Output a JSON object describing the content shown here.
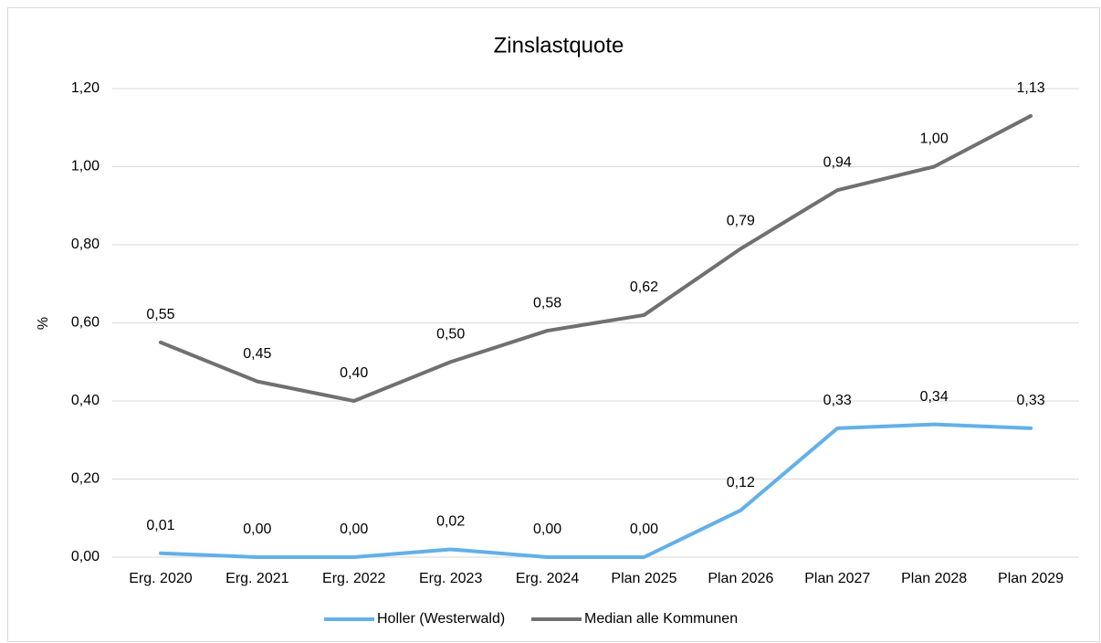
{
  "chart_data": {
    "type": "line",
    "title": "Zinslastquote",
    "y_label": "%",
    "categories": [
      "Erg. 2020",
      "Erg. 2021",
      "Erg. 2022",
      "Erg. 2023",
      "Erg. 2024",
      "Plan 2025",
      "Plan 2026",
      "Plan 2027",
      "Plan 2028",
      "Plan 2029"
    ],
    "series": [
      {
        "name": "Holler (Westerwald)",
        "color": "#63b0e8",
        "values": [
          0.01,
          0,
          0,
          0.02,
          0,
          0,
          0.12,
          0.33,
          0.34,
          0.33
        ],
        "value_labels": [
          "0,01",
          "0,00",
          "0,00",
          "0,02",
          "0,00",
          "0,00",
          "0,12",
          "0,33",
          "0,34",
          "0,33"
        ]
      },
      {
        "name": "Median alle Kommunen",
        "color": "#707070",
        "values": [
          0.55,
          0.45,
          0.4,
          0.5,
          0.58,
          0.62,
          0.79,
          0.94,
          1,
          1.13
        ],
        "value_labels": [
          "0,55",
          "0,45",
          "0,40",
          "0,50",
          "0,58",
          "0,62",
          "0,79",
          "0,94",
          "1,00",
          "1,13"
        ]
      }
    ],
    "ylim": [
      0,
      1.2
    ],
    "yticks": [
      {
        "value": 0,
        "label": "0,00"
      },
      {
        "value": 0.2,
        "label": "0,20"
      },
      {
        "value": 0.4,
        "label": "0,40"
      },
      {
        "value": 0.6,
        "label": "0,60"
      },
      {
        "value": 0.8,
        "label": "0,80"
      },
      {
        "value": 1,
        "label": "1,00"
      },
      {
        "value": 1.2,
        "label": "1,20"
      }
    ],
    "grid": true,
    "legend": "bottom"
  }
}
